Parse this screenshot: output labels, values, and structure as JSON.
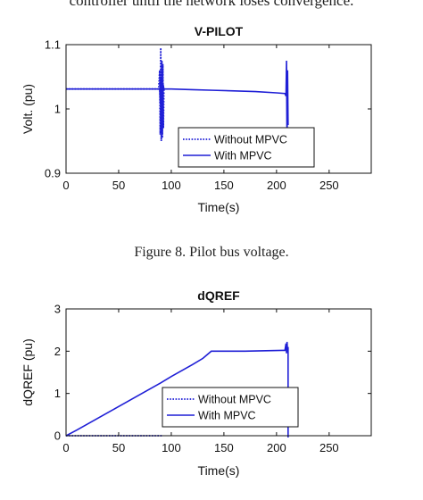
{
  "page": {
    "top_text": "controller until the network loses convergence.",
    "caption1": "Figure 8.   Pilot bus voltage.",
    "caption2": ""
  },
  "colors": {
    "series": "#1f1fd6",
    "axis": "#111111"
  },
  "chart_data": [
    {
      "type": "line",
      "title": "V-PILOT",
      "xlabel": "Time(s)",
      "ylabel": "Volt. (pu)",
      "xlim": [
        0,
        290
      ],
      "ylim": [
        0.9,
        1.1
      ],
      "xticks": [
        0,
        50,
        100,
        150,
        200,
        250
      ],
      "yticks": [
        0.9,
        1,
        1.1
      ],
      "ytick_labels": [
        "0.9",
        "1",
        "1.1"
      ],
      "grid": false,
      "legend_position": "lower-center",
      "series": [
        {
          "name": "Without MPVC",
          "style": "dotted",
          "x": [
            0,
            20,
            40,
            60,
            80,
            88,
            89,
            89.5,
            90,
            90.5,
            91,
            91.5,
            92,
            92.5,
            93
          ],
          "y": [
            1.031,
            1.031,
            1.031,
            1.031,
            1.031,
            1.031,
            1.06,
            0.96,
            1.095,
            0.95,
            1.075,
            0.955,
            1.07,
            0.97,
            1.03
          ]
        },
        {
          "name": "With MPVC",
          "style": "solid",
          "x": [
            0,
            20,
            40,
            60,
            80,
            89,
            89.5,
            90,
            90.5,
            91,
            91.5,
            92,
            93,
            100,
            120,
            140,
            160,
            180,
            200,
            208,
            209,
            209.5,
            210,
            210.5,
            211
          ],
          "y": [
            1.031,
            1.031,
            1.031,
            1.031,
            1.031,
            1.031,
            1.01,
            1.05,
            0.965,
            1.075,
            0.96,
            1.04,
            1.031,
            1.031,
            1.03,
            1.029,
            1.028,
            1.027,
            1.025,
            1.024,
            1.02,
            1.075,
            0.93,
            1.06,
            0.975
          ]
        }
      ]
    },
    {
      "type": "line",
      "title": "dQREF",
      "xlabel": "Time(s)",
      "ylabel": "dQREF (pu)",
      "xlim": [
        0,
        290
      ],
      "ylim": [
        0,
        3
      ],
      "xticks": [
        0,
        50,
        100,
        150,
        200,
        250
      ],
      "yticks": [
        0,
        1,
        2,
        3
      ],
      "ytick_labels": [
        "0",
        "1",
        "2",
        "3"
      ],
      "grid": false,
      "legend_position": "lower-center",
      "series": [
        {
          "name": "Without MPVC",
          "style": "dotted",
          "x": [
            0,
            92
          ],
          "y": [
            0,
            0
          ]
        },
        {
          "name": "With MPVC",
          "style": "solid",
          "x": [
            0,
            10,
            20,
            30,
            40,
            50,
            60,
            70,
            80,
            90,
            100,
            110,
            120,
            130,
            138,
            150,
            170,
            190,
            205,
            208,
            209,
            209.5,
            210,
            210.5,
            211,
            211,
            211,
            290
          ],
          "y": [
            0,
            0.13,
            0.27,
            0.41,
            0.55,
            0.69,
            0.83,
            0.97,
            1.11,
            1.25,
            1.4,
            1.54,
            1.68,
            1.83,
            2.0,
            2.0,
            2.0,
            2.01,
            2.02,
            2.02,
            2.18,
            1.95,
            2.22,
            1.98,
            2.1,
            0,
            -0.1,
            -0.1
          ]
        }
      ]
    }
  ]
}
